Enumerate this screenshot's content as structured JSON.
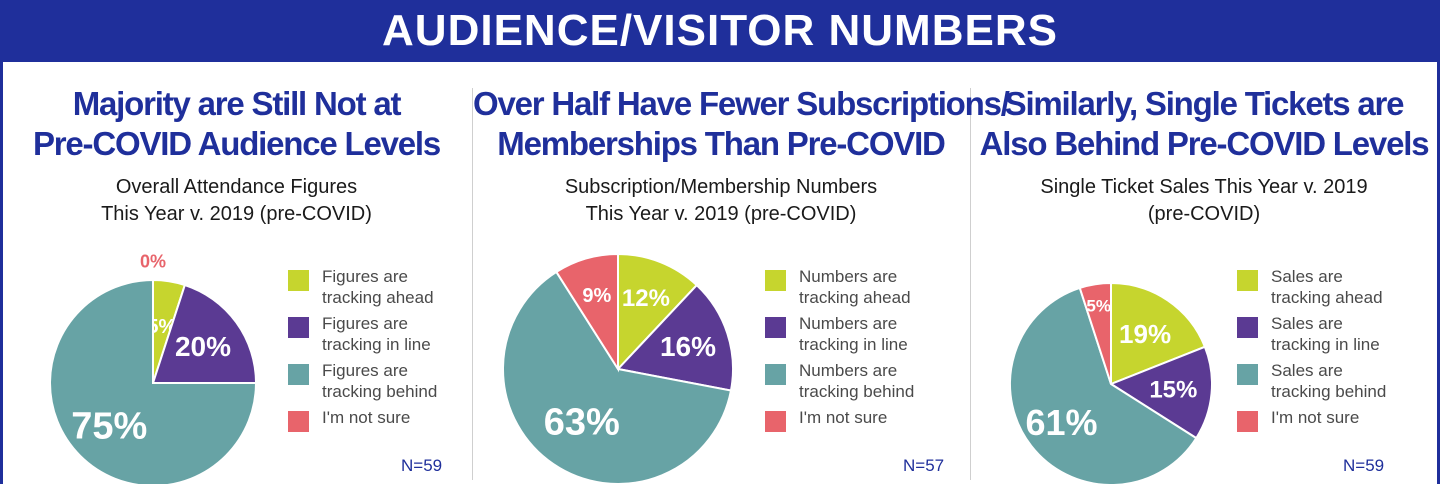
{
  "banner_title": "AUDIENCE/VISITOR NUMBERS",
  "colors": {
    "banner": "#1f2f9b",
    "ahead": "#c6d52e",
    "in_line": "#5b3a93",
    "behind": "#67a3a5",
    "not_sure": "#e8646b",
    "headline": "#1f2f9b"
  },
  "panels": [
    {
      "headline_lines": [
        "Majority are Still Not at",
        "Pre-COVID Audience Levels"
      ],
      "subtitle_lines": [
        "Overall Attendance Figures",
        "This Year v. 2019 (pre-COVID)"
      ],
      "legend": [
        {
          "lines": [
            "Figures are",
            "tracking ahead"
          ]
        },
        {
          "lines": [
            "Figures are",
            "tracking in line"
          ]
        },
        {
          "lines": [
            "Figures are",
            "tracking behind"
          ]
        },
        {
          "lines": [
            "I'm not sure"
          ]
        }
      ],
      "n_label": "N=59"
    },
    {
      "headline_lines": [
        "Over Half Have Fewer Subscriptions/",
        "Memberships Than Pre-COVID"
      ],
      "subtitle_lines": [
        "Subscription/Membership Numbers",
        "This Year v. 2019 (pre-COVID)"
      ],
      "legend": [
        {
          "lines": [
            "Numbers are",
            "tracking ahead"
          ]
        },
        {
          "lines": [
            "Numbers are",
            "tracking in line"
          ]
        },
        {
          "lines": [
            "Numbers are",
            "tracking behind"
          ]
        },
        {
          "lines": [
            "I'm not sure"
          ]
        }
      ],
      "n_label": "N=57"
    },
    {
      "headline_lines": [
        "Similarly, Single Tickets are",
        "Also Behind Pre-COVID Levels"
      ],
      "subtitle_lines": [
        "Single Ticket Sales This Year v. 2019",
        "(pre-COVID)"
      ],
      "legend": [
        {
          "lines": [
            "Sales are",
            "tracking ahead"
          ]
        },
        {
          "lines": [
            "Sales are",
            "tracking in line"
          ]
        },
        {
          "lines": [
            "Sales are",
            "tracking behind"
          ]
        },
        {
          "lines": [
            "I'm not sure"
          ]
        }
      ],
      "n_label": "N=59"
    }
  ],
  "chart_data": [
    {
      "type": "pie",
      "title": "Overall Attendance Figures This Year v. 2019 (pre-COVID)",
      "categories": [
        "Figures are tracking ahead",
        "Figures are tracking in line",
        "Figures are tracking behind",
        "I'm not sure"
      ],
      "values": [
        5,
        20,
        75,
        0
      ],
      "labels": [
        "5%",
        "20%",
        "75%",
        "0%"
      ],
      "colors": [
        "#c6d52e",
        "#5b3a93",
        "#67a3a5",
        "#e8646b"
      ],
      "n": "N=59"
    },
    {
      "type": "pie",
      "title": "Subscription/Membership Numbers This Year v. 2019 (pre-COVID)",
      "categories": [
        "Numbers are tracking ahead",
        "Numbers are tracking in line",
        "Numbers are tracking behind",
        "I'm not sure"
      ],
      "values": [
        12,
        16,
        63,
        9
      ],
      "labels": [
        "12%",
        "16%",
        "63%",
        "9%"
      ],
      "colors": [
        "#c6d52e",
        "#5b3a93",
        "#67a3a5",
        "#e8646b"
      ],
      "n": "N=57"
    },
    {
      "type": "pie",
      "title": "Single Ticket Sales This Year v. 2019 (pre-COVID)",
      "categories": [
        "Sales are tracking ahead",
        "Sales are tracking in line",
        "Sales are tracking behind",
        "I'm not sure"
      ],
      "values": [
        19,
        15,
        61,
        5
      ],
      "labels": [
        "19%",
        "15%",
        "61%",
        "5%"
      ],
      "colors": [
        "#c6d52e",
        "#5b3a93",
        "#67a3a5",
        "#e8646b"
      ],
      "n": "N=59"
    }
  ]
}
